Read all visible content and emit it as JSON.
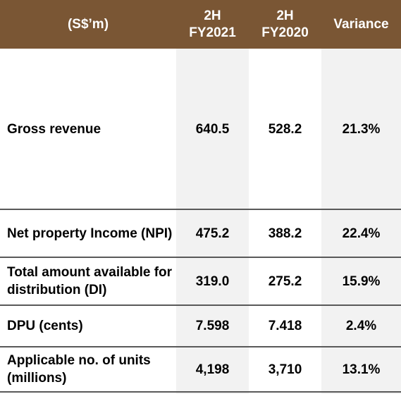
{
  "table": {
    "headers": [
      "(S$’m)",
      "2H\nFY2021",
      "2H\nFY2020",
      "Variance"
    ],
    "rows": [
      {
        "label": "Gross revenue",
        "fy2021": "640.5",
        "fy2020": "528.2",
        "variance": "21.3%"
      },
      {
        "label": "Net property Income (NPI)",
        "fy2021": "475.2",
        "fy2020": "388.2",
        "variance": "22.4%"
      },
      {
        "label": "Total amount available for distribution (DI)",
        "fy2021": "319.0",
        "fy2020": "275.2",
        "variance": "15.9%"
      },
      {
        "label": "DPU (cents)",
        "fy2021": "7.598",
        "fy2020": "7.418",
        "variance": "2.4%"
      },
      {
        "label": "Applicable no. of units (millions)",
        "fy2021": "4,198",
        "fy2020": "3,710",
        "variance": "13.1%"
      }
    ]
  },
  "colors": {
    "header_bg": "#7a5634",
    "header_text": "#ffffff",
    "shade": "#f2f2f2",
    "rule": "#595959"
  }
}
